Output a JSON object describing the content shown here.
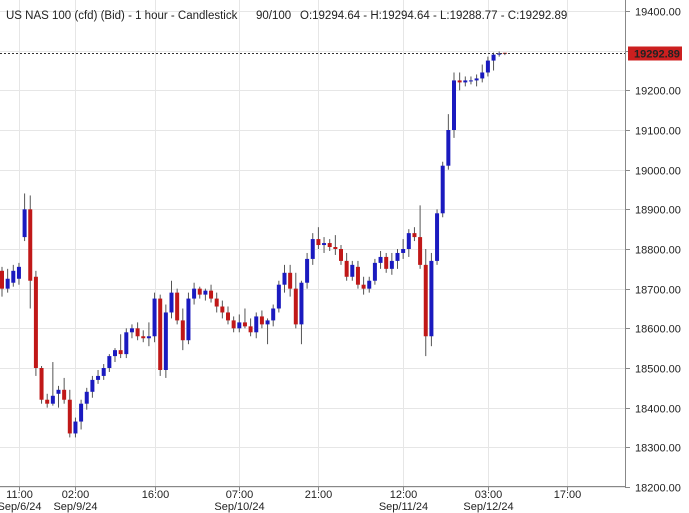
{
  "header": {
    "instrument": "US NAS 100 (cfd) (Bid) - 1 hour - Candlestick",
    "range": "90/100",
    "ohlc": "O:19294.64 - H:19294.64 - L:19288.77 - C:19292.89"
  },
  "colors": {
    "up": "#1a1abf",
    "down": "#c01818",
    "price_tag_bg": "#cc1f1f",
    "grid": "#e6e6e6",
    "wick": "#555555"
  },
  "chart_data": {
    "type": "candlestick",
    "ylim": [
      18200,
      19400
    ],
    "y_ticks": [
      "19400.00",
      "19300.00",
      "19200.00",
      "19100.00",
      "19000.00",
      "18900.00",
      "18800.00",
      "18700.00",
      "18600.00",
      "18500.00",
      "18400.00",
      "18300.00",
      "18200.00"
    ],
    "x_ticks": [
      {
        "time": "11:00",
        "date": "Sep/6/24",
        "index": 3
      },
      {
        "time": "02:00",
        "date": "Sep/9/24",
        "index": 13
      },
      {
        "time": "16:00",
        "date": "",
        "index": 27
      },
      {
        "time": "07:00",
        "date": "Sep/10/24",
        "index": 42
      },
      {
        "time": "21:00",
        "date": "",
        "index": 56
      },
      {
        "time": "12:00",
        "date": "Sep/11/24",
        "index": 71
      },
      {
        "time": "03:00",
        "date": "Sep/12/24",
        "index": 86
      },
      {
        "time": "17:00",
        "date": "",
        "index": 100
      }
    ],
    "current_price": "19292.89",
    "candles": [
      {
        "o": 18745,
        "h": 18755,
        "l": 18680,
        "c": 18700
      },
      {
        "o": 18700,
        "h": 18750,
        "l": 18690,
        "c": 18725
      },
      {
        "o": 18715,
        "h": 18760,
        "l": 18705,
        "c": 18745
      },
      {
        "o": 18725,
        "h": 18765,
        "l": 18710,
        "c": 18755
      },
      {
        "o": 18830,
        "h": 18940,
        "l": 18820,
        "c": 18900
      },
      {
        "o": 18900,
        "h": 18935,
        "l": 18650,
        "c": 18720
      },
      {
        "o": 18730,
        "h": 18745,
        "l": 18480,
        "c": 18500
      },
      {
        "o": 18500,
        "h": 18505,
        "l": 18410,
        "c": 18420
      },
      {
        "o": 18420,
        "h": 18435,
        "l": 18400,
        "c": 18410
      },
      {
        "o": 18410,
        "h": 18515,
        "l": 18405,
        "c": 18430
      },
      {
        "o": 18435,
        "h": 18455,
        "l": 18400,
        "c": 18445
      },
      {
        "o": 18445,
        "h": 18475,
        "l": 18410,
        "c": 18420
      },
      {
        "o": 18420,
        "h": 18445,
        "l": 18325,
        "c": 18335
      },
      {
        "o": 18335,
        "h": 18375,
        "l": 18325,
        "c": 18365
      },
      {
        "o": 18365,
        "h": 18420,
        "l": 18345,
        "c": 18410
      },
      {
        "o": 18410,
        "h": 18450,
        "l": 18395,
        "c": 18440
      },
      {
        "o": 18440,
        "h": 18480,
        "l": 18425,
        "c": 18470
      },
      {
        "o": 18470,
        "h": 18495,
        "l": 18460,
        "c": 18480
      },
      {
        "o": 18480,
        "h": 18510,
        "l": 18470,
        "c": 18500
      },
      {
        "o": 18500,
        "h": 18535,
        "l": 18490,
        "c": 18530
      },
      {
        "o": 18530,
        "h": 18550,
        "l": 18515,
        "c": 18545
      },
      {
        "o": 18545,
        "h": 18585,
        "l": 18525,
        "c": 18535
      },
      {
        "o": 18535,
        "h": 18600,
        "l": 18525,
        "c": 18590
      },
      {
        "o": 18590,
        "h": 18610,
        "l": 18575,
        "c": 18600
      },
      {
        "o": 18600,
        "h": 18615,
        "l": 18570,
        "c": 18580
      },
      {
        "o": 18580,
        "h": 18595,
        "l": 18565,
        "c": 18575
      },
      {
        "o": 18575,
        "h": 18615,
        "l": 18555,
        "c": 18580
      },
      {
        "o": 18580,
        "h": 18690,
        "l": 18565,
        "c": 18675
      },
      {
        "o": 18675,
        "h": 18685,
        "l": 18480,
        "c": 18495
      },
      {
        "o": 18495,
        "h": 18660,
        "l": 18475,
        "c": 18640
      },
      {
        "o": 18640,
        "h": 18720,
        "l": 18625,
        "c": 18690
      },
      {
        "o": 18690,
        "h": 18700,
        "l": 18610,
        "c": 18620
      },
      {
        "o": 18620,
        "h": 18650,
        "l": 18545,
        "c": 18570
      },
      {
        "o": 18570,
        "h": 18690,
        "l": 18560,
        "c": 18675
      },
      {
        "o": 18675,
        "h": 18715,
        "l": 18660,
        "c": 18700
      },
      {
        "o": 18700,
        "h": 18705,
        "l": 18675,
        "c": 18685
      },
      {
        "o": 18685,
        "h": 18700,
        "l": 18670,
        "c": 18695
      },
      {
        "o": 18695,
        "h": 18710,
        "l": 18665,
        "c": 18675
      },
      {
        "o": 18675,
        "h": 18690,
        "l": 18640,
        "c": 18655
      },
      {
        "o": 18655,
        "h": 18670,
        "l": 18625,
        "c": 18640
      },
      {
        "o": 18640,
        "h": 18655,
        "l": 18610,
        "c": 18620
      },
      {
        "o": 18620,
        "h": 18630,
        "l": 18590,
        "c": 18600
      },
      {
        "o": 18600,
        "h": 18635,
        "l": 18590,
        "c": 18615
      },
      {
        "o": 18615,
        "h": 18650,
        "l": 18600,
        "c": 18605
      },
      {
        "o": 18605,
        "h": 18625,
        "l": 18580,
        "c": 18590
      },
      {
        "o": 18590,
        "h": 18640,
        "l": 18575,
        "c": 18630
      },
      {
        "o": 18630,
        "h": 18645,
        "l": 18600,
        "c": 18610
      },
      {
        "o": 18610,
        "h": 18625,
        "l": 18560,
        "c": 18620
      },
      {
        "o": 18620,
        "h": 18660,
        "l": 18605,
        "c": 18650
      },
      {
        "o": 18650,
        "h": 18720,
        "l": 18640,
        "c": 18710
      },
      {
        "o": 18710,
        "h": 18760,
        "l": 18690,
        "c": 18740
      },
      {
        "o": 18740,
        "h": 18760,
        "l": 18680,
        "c": 18700
      },
      {
        "o": 18700,
        "h": 18740,
        "l": 18600,
        "c": 18610
      },
      {
        "o": 18610,
        "h": 18720,
        "l": 18560,
        "c": 18715
      },
      {
        "o": 18715,
        "h": 18790,
        "l": 18700,
        "c": 18775
      },
      {
        "o": 18775,
        "h": 18840,
        "l": 18760,
        "c": 18825
      },
      {
        "o": 18825,
        "h": 18855,
        "l": 18800,
        "c": 18810
      },
      {
        "o": 18810,
        "h": 18830,
        "l": 18790,
        "c": 18815
      },
      {
        "o": 18815,
        "h": 18825,
        "l": 18795,
        "c": 18805
      },
      {
        "o": 18805,
        "h": 18835,
        "l": 18785,
        "c": 18800
      },
      {
        "o": 18800,
        "h": 18810,
        "l": 18760,
        "c": 18770
      },
      {
        "o": 18770,
        "h": 18790,
        "l": 18720,
        "c": 18730
      },
      {
        "o": 18730,
        "h": 18770,
        "l": 18720,
        "c": 18760
      },
      {
        "o": 18755,
        "h": 18770,
        "l": 18700,
        "c": 18710
      },
      {
        "o": 18710,
        "h": 18730,
        "l": 18685,
        "c": 18700
      },
      {
        "o": 18700,
        "h": 18730,
        "l": 18690,
        "c": 18720
      },
      {
        "o": 18720,
        "h": 18775,
        "l": 18710,
        "c": 18765
      },
      {
        "o": 18765,
        "h": 18795,
        "l": 18750,
        "c": 18780
      },
      {
        "o": 18780,
        "h": 18790,
        "l": 18740,
        "c": 18750
      },
      {
        "o": 18750,
        "h": 18790,
        "l": 18735,
        "c": 18770
      },
      {
        "o": 18770,
        "h": 18800,
        "l": 18750,
        "c": 18790
      },
      {
        "o": 18790,
        "h": 18825,
        "l": 18775,
        "c": 18800
      },
      {
        "o": 18800,
        "h": 18850,
        "l": 18780,
        "c": 18840
      },
      {
        "o": 18840,
        "h": 18855,
        "l": 18820,
        "c": 18830
      },
      {
        "o": 18830,
        "h": 18910,
        "l": 18750,
        "c": 18760
      },
      {
        "o": 18760,
        "h": 18800,
        "l": 18530,
        "c": 18580
      },
      {
        "o": 18580,
        "h": 18790,
        "l": 18555,
        "c": 18770
      },
      {
        "o": 18770,
        "h": 18900,
        "l": 18760,
        "c": 18890
      },
      {
        "o": 18890,
        "h": 19020,
        "l": 18880,
        "c": 19010
      },
      {
        "o": 19010,
        "h": 19140,
        "l": 19000,
        "c": 19100
      },
      {
        "o": 19100,
        "h": 19245,
        "l": 19080,
        "c": 19225
      },
      {
        "o": 19225,
        "h": 19245,
        "l": 19200,
        "c": 19220
      },
      {
        "o": 19220,
        "h": 19235,
        "l": 19210,
        "c": 19225
      },
      {
        "o": 19225,
        "h": 19235,
        "l": 19215,
        "c": 19225
      },
      {
        "o": 19225,
        "h": 19240,
        "l": 19210,
        "c": 19230
      },
      {
        "o": 19230,
        "h": 19265,
        "l": 19220,
        "c": 19245
      },
      {
        "o": 19245,
        "h": 19285,
        "l": 19235,
        "c": 19275
      },
      {
        "o": 19275,
        "h": 19295,
        "l": 19250,
        "c": 19290
      },
      {
        "o": 19290,
        "h": 19298,
        "l": 19285,
        "c": 19293
      },
      {
        "o": 19294.64,
        "h": 19294.64,
        "l": 19288.77,
        "c": 19292.89
      }
    ]
  }
}
